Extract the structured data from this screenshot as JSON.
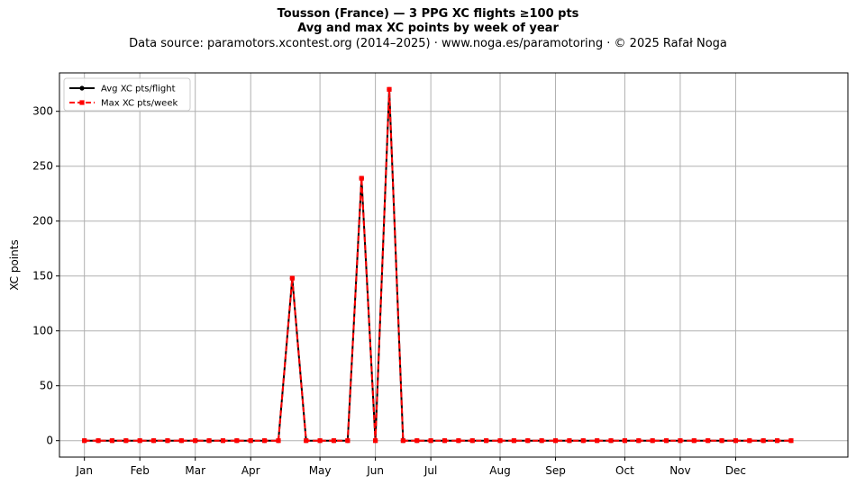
{
  "chart_data": {
    "type": "line",
    "title": "Tousson (France)  —  3 PPG XC flights ≥100 pts",
    "subtitle": "Avg and max XC points by week of year",
    "source": "Data source: paramotors.xcontest.org (2014–2025)  ·  www.noga.es/paramotoring  ·  © 2025 Rafał Noga",
    "xlabel": "",
    "ylabel": "XC points",
    "ylim": [
      -15,
      335
    ],
    "xlim": [
      -1.8,
      55.1
    ],
    "yticks": [
      0,
      50,
      100,
      150,
      200,
      250,
      300
    ],
    "xticks": [
      {
        "label": "Jan",
        "week": 0
      },
      {
        "label": "Feb",
        "week": 4
      },
      {
        "label": "Mar",
        "week": 8
      },
      {
        "label": "Apr",
        "week": 12
      },
      {
        "label": "May",
        "week": 17
      },
      {
        "label": "Jun",
        "week": 21
      },
      {
        "label": "Jul",
        "week": 25
      },
      {
        "label": "Aug",
        "week": 30
      },
      {
        "label": "Sep",
        "week": 34
      },
      {
        "label": "Oct",
        "week": 39
      },
      {
        "label": "Nov",
        "week": 43
      },
      {
        "label": "Dec",
        "week": 47
      }
    ],
    "grid": true,
    "legend_position": "top-left",
    "x": [
      0,
      1,
      2,
      3,
      4,
      5,
      6,
      7,
      8,
      9,
      10,
      11,
      12,
      13,
      14,
      15,
      16,
      17,
      18,
      19,
      20,
      21,
      22,
      23,
      24,
      25,
      26,
      27,
      28,
      29,
      30,
      31,
      32,
      33,
      34,
      35,
      36,
      37,
      38,
      39,
      40,
      41,
      42,
      43,
      44,
      45,
      46,
      47,
      48,
      49,
      50,
      51
    ],
    "series": [
      {
        "name": "Avg XC pts/flight",
        "color": "#000000",
        "style": "solid",
        "marker": "circle",
        "values": [
          0,
          0,
          0,
          0,
          0,
          0,
          0,
          0,
          0,
          0,
          0,
          0,
          0,
          0,
          0,
          148,
          0,
          0,
          0,
          0,
          239,
          0,
          320,
          0,
          0,
          0,
          0,
          0,
          0,
          0,
          0,
          0,
          0,
          0,
          0,
          0,
          0,
          0,
          0,
          0,
          0,
          0,
          0,
          0,
          0,
          0,
          0,
          0,
          0,
          0,
          0,
          0
        ]
      },
      {
        "name": "Max XC pts/week",
        "color": "#ff0000",
        "style": "dashed",
        "marker": "square",
        "values": [
          0,
          0,
          0,
          0,
          0,
          0,
          0,
          0,
          0,
          0,
          0,
          0,
          0,
          0,
          0,
          148,
          0,
          0,
          0,
          0,
          239,
          0,
          320,
          0,
          0,
          0,
          0,
          0,
          0,
          0,
          0,
          0,
          0,
          0,
          0,
          0,
          0,
          0,
          0,
          0,
          0,
          0,
          0,
          0,
          0,
          0,
          0,
          0,
          0,
          0,
          0,
          0
        ]
      }
    ]
  }
}
